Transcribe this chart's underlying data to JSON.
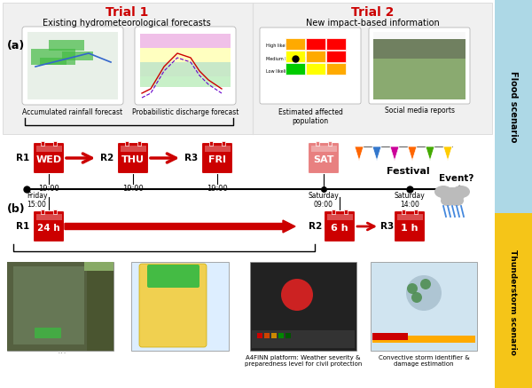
{
  "flood_scenario_color": "#ADD8E6",
  "thunderstorm_scenario_color": "#F5C518",
  "flood_scenario_label": "Flood scenario",
  "thunderstorm_scenario_label": "Thunderstorm scenario",
  "section_a_label": "(a)",
  "section_b_label": "(b)",
  "trial1_label": "Trial 1",
  "trial1_sub": "Existing hydrometeorological forecasts",
  "trial2_label": "Trial 2",
  "trial2_sub": "New impact-based information",
  "caption_rain": "Accumulated rainfall forecast",
  "caption_discharge": "Probabilistic discharge forecast",
  "caption_pop": "Estimated affected\npopulation",
  "caption_social": "Social media reports",
  "caption_a4finn": "A4FINN platform: Weather severity &\npreparedness level for civil protection",
  "caption_storm": "Convective storm identifier &\ndamage estimation",
  "flood_times": [
    "19:00",
    "19:00",
    "19:00"
  ],
  "festival_label": "Festival",
  "event_label": "Event?",
  "red_color": "#CC0000",
  "calendar_red": "#CC0000",
  "calendar_red_light": "#E88080",
  "bg_gray": "#f0f0f0",
  "bg_border": "#dddddd"
}
